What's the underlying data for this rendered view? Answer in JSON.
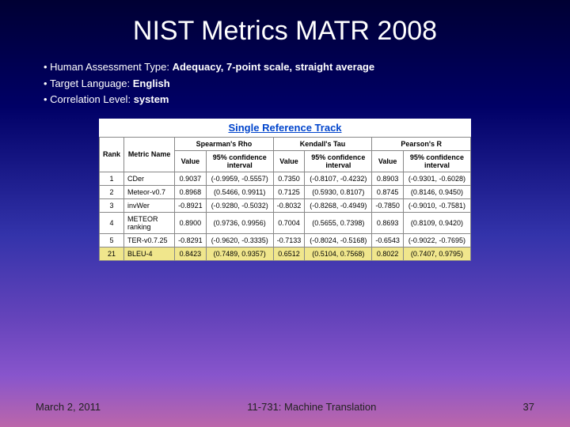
{
  "title": "NIST Metrics MATR 2008",
  "bullets": [
    {
      "label": "Human Assessment Type:",
      "value": "Adequacy, 7-point scale, straight average"
    },
    {
      "label": "Target Language:",
      "value": "English"
    },
    {
      "label": "Correlation Level:",
      "value": "system"
    }
  ],
  "table": {
    "track_title": "Single Reference Track",
    "group_headers": [
      "Spearman's Rho",
      "Kendall's Tau",
      "Pearson's R"
    ],
    "sub_headers": {
      "rank": "Rank",
      "metric": "Metric Name",
      "value": "Value",
      "ci": "95% confidence interval"
    },
    "rows": [
      {
        "rank": "1",
        "metric": "CDer",
        "v1": "0.9037",
        "ci1": "(-0.9959, -0.5557)",
        "v2": "0.7350",
        "ci2": "(-0.8107, -0.4232)",
        "v3": "0.8903",
        "ci3": "(-0.9301, -0.6028)",
        "highlight": false
      },
      {
        "rank": "2",
        "metric": "Meteor-v0.7",
        "v1": "0.8968",
        "ci1": "(0.5466, 0.9911)",
        "v2": "0.7125",
        "ci2": "(0.5930, 0.8107)",
        "v3": "0.8745",
        "ci3": "(0.8146, 0.9450)",
        "highlight": false
      },
      {
        "rank": "3",
        "metric": "invWer",
        "v1": "-0.8921",
        "ci1": "(-0.9280, -0.5032)",
        "v2": "-0.8032",
        "ci2": "(-0.8268, -0.4949)",
        "v3": "-0.7850",
        "ci3": "(-0.9010, -0.7581)",
        "highlight": false
      },
      {
        "rank": "4",
        "metric": "METEOR ranking",
        "v1": "0.8900",
        "ci1": "(0.9736, 0.9956)",
        "v2": "0.7004",
        "ci2": "(0.5655, 0.7398)",
        "v3": "0.8693",
        "ci3": "(0.8109, 0.9420)",
        "highlight": false
      },
      {
        "rank": "5",
        "metric": "TER-v0.7.25",
        "v1": "-0.8291",
        "ci1": "(-0.9620, -0.3335)",
        "v2": "-0.7133",
        "ci2": "(-0.8024, -0.5168)",
        "v3": "-0.6543",
        "ci3": "(-0.9022, -0.7695)",
        "highlight": false
      },
      {
        "rank": "21",
        "metric": "BLEU-4",
        "v1": "0.8423",
        "ci1": "(0.7489, 0.9357)",
        "v2": "0.6512",
        "ci2": "(0.5104, 0.7568)",
        "v3": "0.8022",
        "ci3": "(0.7407, 0.9795)",
        "highlight": true
      }
    ]
  },
  "footer": {
    "date": "March 2, 2011",
    "course": "11-731: Machine Translation",
    "page": "37"
  },
  "colors": {
    "title_color": "#ffffff",
    "link_color": "#0044cc",
    "highlight_bg": "#f0e68c",
    "border": "#888888"
  }
}
